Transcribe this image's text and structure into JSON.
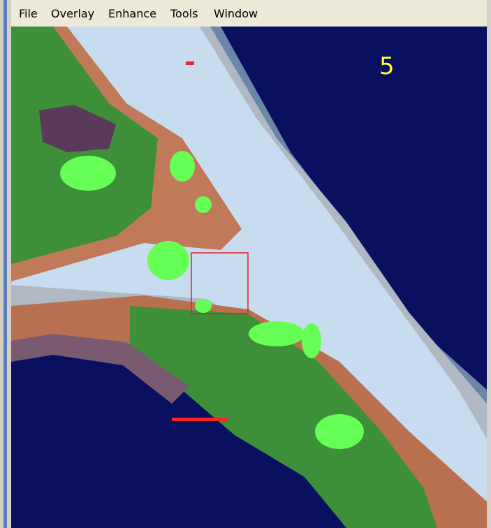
{
  "menu": {
    "items": [
      "File",
      "Overlay",
      "Enhance",
      "Tools",
      "Window"
    ]
  },
  "map": {
    "label": "5"
  }
}
